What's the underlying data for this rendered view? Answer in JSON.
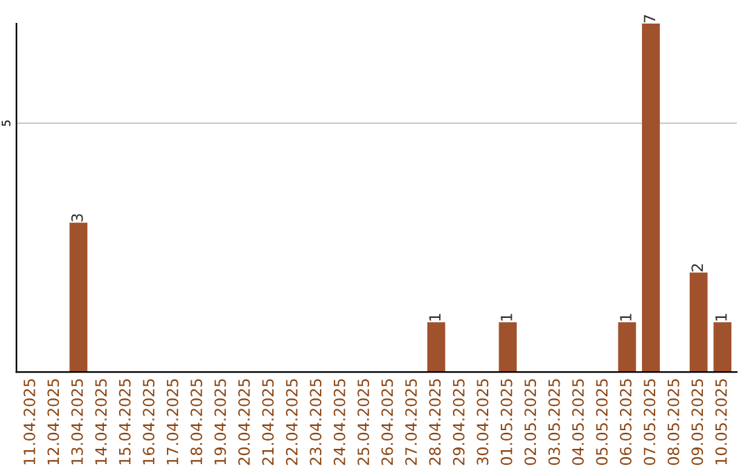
{
  "chart_data": {
    "type": "bar",
    "categories": [
      "11.04.2025",
      "12.04.2025",
      "13.04.2025",
      "14.04.2025",
      "15.04.2025",
      "16.04.2025",
      "17.04.2025",
      "18.04.2025",
      "19.04.2025",
      "20.04.2025",
      "21.04.2025",
      "22.04.2025",
      "23.04.2025",
      "24.04.2025",
      "25.04.2025",
      "26.04.2025",
      "27.04.2025",
      "28.04.2025",
      "29.04.2025",
      "30.04.2025",
      "01.05.2025",
      "02.05.2025",
      "03.05.2025",
      "04.05.2025",
      "05.05.2025",
      "06.05.2025",
      "07.05.2025",
      "08.05.2025",
      "09.05.2025",
      "10.05.2025"
    ],
    "values": [
      0,
      0,
      3,
      0,
      0,
      0,
      0,
      0,
      0,
      0,
      0,
      0,
      0,
      0,
      0,
      0,
      0,
      1,
      0,
      0,
      1,
      0,
      0,
      0,
      0,
      1,
      7,
      0,
      2,
      1
    ],
    "value_labels": [
      null,
      null,
      "3",
      null,
      null,
      null,
      null,
      null,
      null,
      null,
      null,
      null,
      null,
      null,
      null,
      null,
      null,
      "1",
      null,
      null,
      "1",
      null,
      null,
      null,
      null,
      "1",
      "7",
      null,
      "2",
      "1"
    ],
    "color": "#a0522d",
    "ylim": [
      0,
      7
    ],
    "yticks": [
      5
    ],
    "grid": "y"
  }
}
